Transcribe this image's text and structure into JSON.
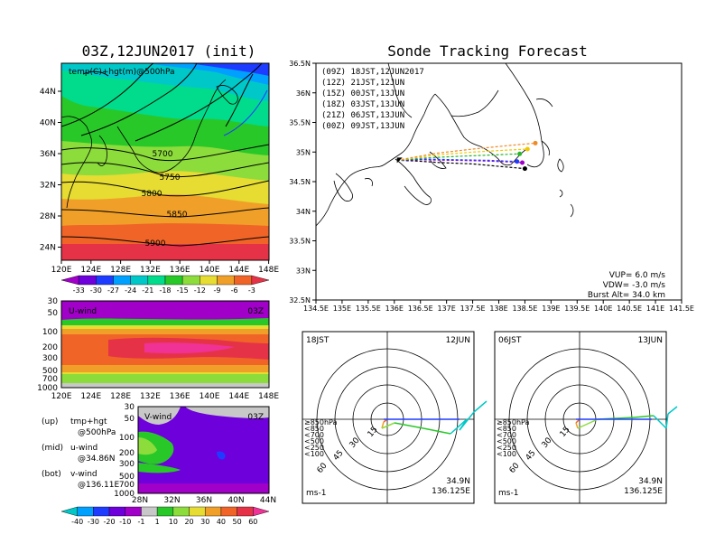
{
  "left_title": "03Z,12JUN2017 (init)",
  "right_title": "Sonde Tracking Forecast",
  "top_map": {
    "label": "temp(C)+hgt(m)@500hPa",
    "lon_ticks": [
      "120E",
      "124E",
      "128E",
      "132E",
      "136E",
      "140E",
      "144E",
      "148E"
    ],
    "lat_ticks": [
      "44N",
      "40N",
      "36N",
      "32N",
      "28N",
      "24N"
    ],
    "contour_labels": [
      "5700",
      "5750",
      "5800",
      "5850",
      "5900"
    ],
    "colorbar_ticks": [
      "-33",
      "-30",
      "-27",
      "-24",
      "-21",
      "-18",
      "-15",
      "-12",
      "-9",
      "-6",
      "-3"
    ],
    "colorbar_colors": [
      "#a000c8",
      "#6e00dc",
      "#1e3cff",
      "#00a0ff",
      "#00c8c8",
      "#00dc8c",
      "#28c828",
      "#8cdc3c",
      "#e6dc32",
      "#f0a028",
      "#f06428",
      "#e63246"
    ]
  },
  "u_wind": {
    "label": "U-wind",
    "time": "03Z",
    "lev_ticks": [
      "30",
      "50",
      "100",
      "200",
      "300",
      "500",
      "700",
      "1000"
    ],
    "lon_ticks": [
      "120E",
      "124E",
      "128E",
      "132E",
      "136E",
      "140E",
      "144E",
      "148E"
    ]
  },
  "v_wind": {
    "label": "V-wind",
    "time": "03Z",
    "lev_ticks": [
      "30",
      "50",
      "100",
      "200",
      "300",
      "500",
      "700",
      "1000"
    ],
    "lat_ticks": [
      "28N",
      "32N",
      "36N",
      "40N",
      "44N"
    ],
    "colorbar_ticks": [
      "-40",
      "-30",
      "-20",
      "-10",
      "-1",
      "1",
      "10",
      "20",
      "30",
      "40",
      "50",
      "60"
    ],
    "colorbar_colors": [
      "#00c8c8",
      "#00a0ff",
      "#1e3cff",
      "#6e00dc",
      "#a000c8",
      "#c8c8c8",
      "#28c828",
      "#8cdc3c",
      "#e6dc32",
      "#f0a028",
      "#f06428",
      "#e63246",
      "#f03296"
    ]
  },
  "legend_notes": [
    {
      "key": "(up)",
      "l1": "tmp+hgt",
      "l2": "@500hPa"
    },
    {
      "key": "(mid)",
      "l1": "u-wind",
      "l2": "@34.86N"
    },
    {
      "key": "(bot)",
      "l1": "v-wind",
      "l2": "@136.11E"
    }
  ],
  "track_map": {
    "lon_ticks": [
      "134.5E",
      "135E",
      "135.5E",
      "136E",
      "136.5E",
      "137E",
      "137.5E",
      "138E",
      "138.5E",
      "139E",
      "139.5E",
      "140E",
      "140.5E",
      "141E",
      "141.5E"
    ],
    "lat_ticks": [
      "36.5N",
      "36N",
      "35.5N",
      "35N",
      "34.5N",
      "34N",
      "33.5N",
      "33N",
      "32.5N"
    ],
    "legend": [
      {
        "text": "(09Z)  18JST,12JUN2017",
        "color": "#000000"
      },
      {
        "text": "(12Z)  21JST,12JUN",
        "color": "#a000c8"
      },
      {
        "text": "(15Z)  00JST,13JUN",
        "color": "#1e3cff"
      },
      {
        "text": "(18Z)  03JST,13JUN",
        "color": "#28b428"
      },
      {
        "text": "(21Z)  06JST,13JUN",
        "color": "#f0c800"
      },
      {
        "text": "(00Z)  09JST,13JUN",
        "color": "#f08c28"
      }
    ],
    "params": [
      "VUP=  6.0  m/s",
      "VDW= -3.0  m/s",
      "Burst Alt=  34.0  km"
    ]
  },
  "hodographs": [
    {
      "time": "18JST",
      "date": "12JUN",
      "lat": "34.9N",
      "lon": "136.125E",
      "unit": "ms-1",
      "ring_labels": [
        "15",
        "30",
        "45",
        "60"
      ],
      "level_legend": [
        {
          "t": "≥850hPa",
          "c": "#f06428"
        },
        {
          "t": "<850",
          "c": "#f0a028"
        },
        {
          "t": "<700",
          "c": "#8cdc3c"
        },
        {
          "t": "<500",
          "c": "#28c828"
        },
        {
          "t": "<250",
          "c": "#00c8c8"
        },
        {
          "t": "<100",
          "c": "#1e3cff"
        }
      ]
    },
    {
      "time": "06JST",
      "date": "13JUN",
      "lat": "34.9N",
      "lon": "136.125E",
      "unit": "ms-1",
      "ring_labels": [
        "15",
        "30",
        "45",
        "60"
      ],
      "level_legend": [
        {
          "t": "≥850hPa",
          "c": "#f06428"
        },
        {
          "t": "<850",
          "c": "#f0a028"
        },
        {
          "t": "<700",
          "c": "#8cdc3c"
        },
        {
          "t": "<500",
          "c": "#28c828"
        },
        {
          "t": "<250",
          "c": "#00c8c8"
        },
        {
          "t": "<100",
          "c": "#1e3cff"
        }
      ]
    }
  ],
  "chart_data": [
    {
      "type": "heatmap",
      "title": "03Z,12JUN2017 (init)",
      "subtitle": "temp(C)+hgt(m)@500hPa",
      "x_range": [
        "120E",
        "150E"
      ],
      "y_range": [
        "22N",
        "47N"
      ],
      "contours": [
        5700,
        5750,
        5800,
        5850,
        5900
      ]
    },
    {
      "type": "heatmap",
      "title": "U-wind",
      "x_range": [
        "120E",
        "150E"
      ],
      "y_levels_hPa": [
        1000,
        700,
        500,
        300,
        200,
        100,
        50,
        30
      ]
    },
    {
      "type": "heatmap",
      "title": "V-wind",
      "x_range": [
        "28N",
        "44N"
      ],
      "y_levels_hPa": [
        1000,
        700,
        500,
        300,
        200,
        100,
        50,
        30
      ]
    },
    {
      "type": "line",
      "title": "Sonde Tracking Forecast",
      "xlim": [
        134.5,
        141.5
      ],
      "ylim": [
        32.5,
        36.5
      ],
      "series": [
        {
          "name": "(09Z)  18JST,12JUN2017",
          "color": "#000000",
          "points": [
            [
              136.05,
              34.86
            ],
            [
              136.4,
              34.85
            ],
            [
              136.9,
              34.82
            ],
            [
              137.5,
              34.8
            ],
            [
              138.1,
              34.75
            ],
            [
              138.5,
              34.72
            ]
          ]
        },
        {
          "name": "(12Z)  21JST,12JUN",
          "color": "#a000c8",
          "points": [
            [
              136.05,
              34.86
            ],
            [
              136.5,
              34.87
            ],
            [
              137.1,
              34.86
            ],
            [
              137.7,
              34.85
            ],
            [
              138.3,
              34.83
            ],
            [
              138.45,
              34.82
            ]
          ]
        },
        {
          "name": "(15Z)  00JST,13JUN",
          "color": "#1e3cff",
          "points": [
            [
              136.05,
              34.86
            ],
            [
              136.6,
              34.88
            ],
            [
              137.2,
              34.87
            ],
            [
              137.8,
              34.86
            ],
            [
              138.35,
              34.84
            ]
          ]
        },
        {
          "name": "(18Z)  03JST,13JUN",
          "color": "#28b428",
          "points": [
            [
              136.05,
              34.86
            ],
            [
              136.6,
              34.9
            ],
            [
              137.3,
              34.93
            ],
            [
              137.9,
              34.95
            ],
            [
              138.4,
              34.97
            ]
          ]
        },
        {
          "name": "(21Z)  06JST,13JUN",
          "color": "#f0c800",
          "points": [
            [
              136.05,
              34.86
            ],
            [
              136.8,
              34.95
            ],
            [
              137.5,
              35.0
            ],
            [
              138.1,
              35.03
            ],
            [
              138.55,
              35.05
            ]
          ]
        },
        {
          "name": "(00Z)  09JST,13JUN",
          "color": "#f08c28",
          "points": [
            [
              136.05,
              34.86
            ],
            [
              136.8,
              34.98
            ],
            [
              137.5,
              35.05
            ],
            [
              138.2,
              35.11
            ],
            [
              138.7,
              35.15
            ]
          ]
        }
      ]
    }
  ]
}
